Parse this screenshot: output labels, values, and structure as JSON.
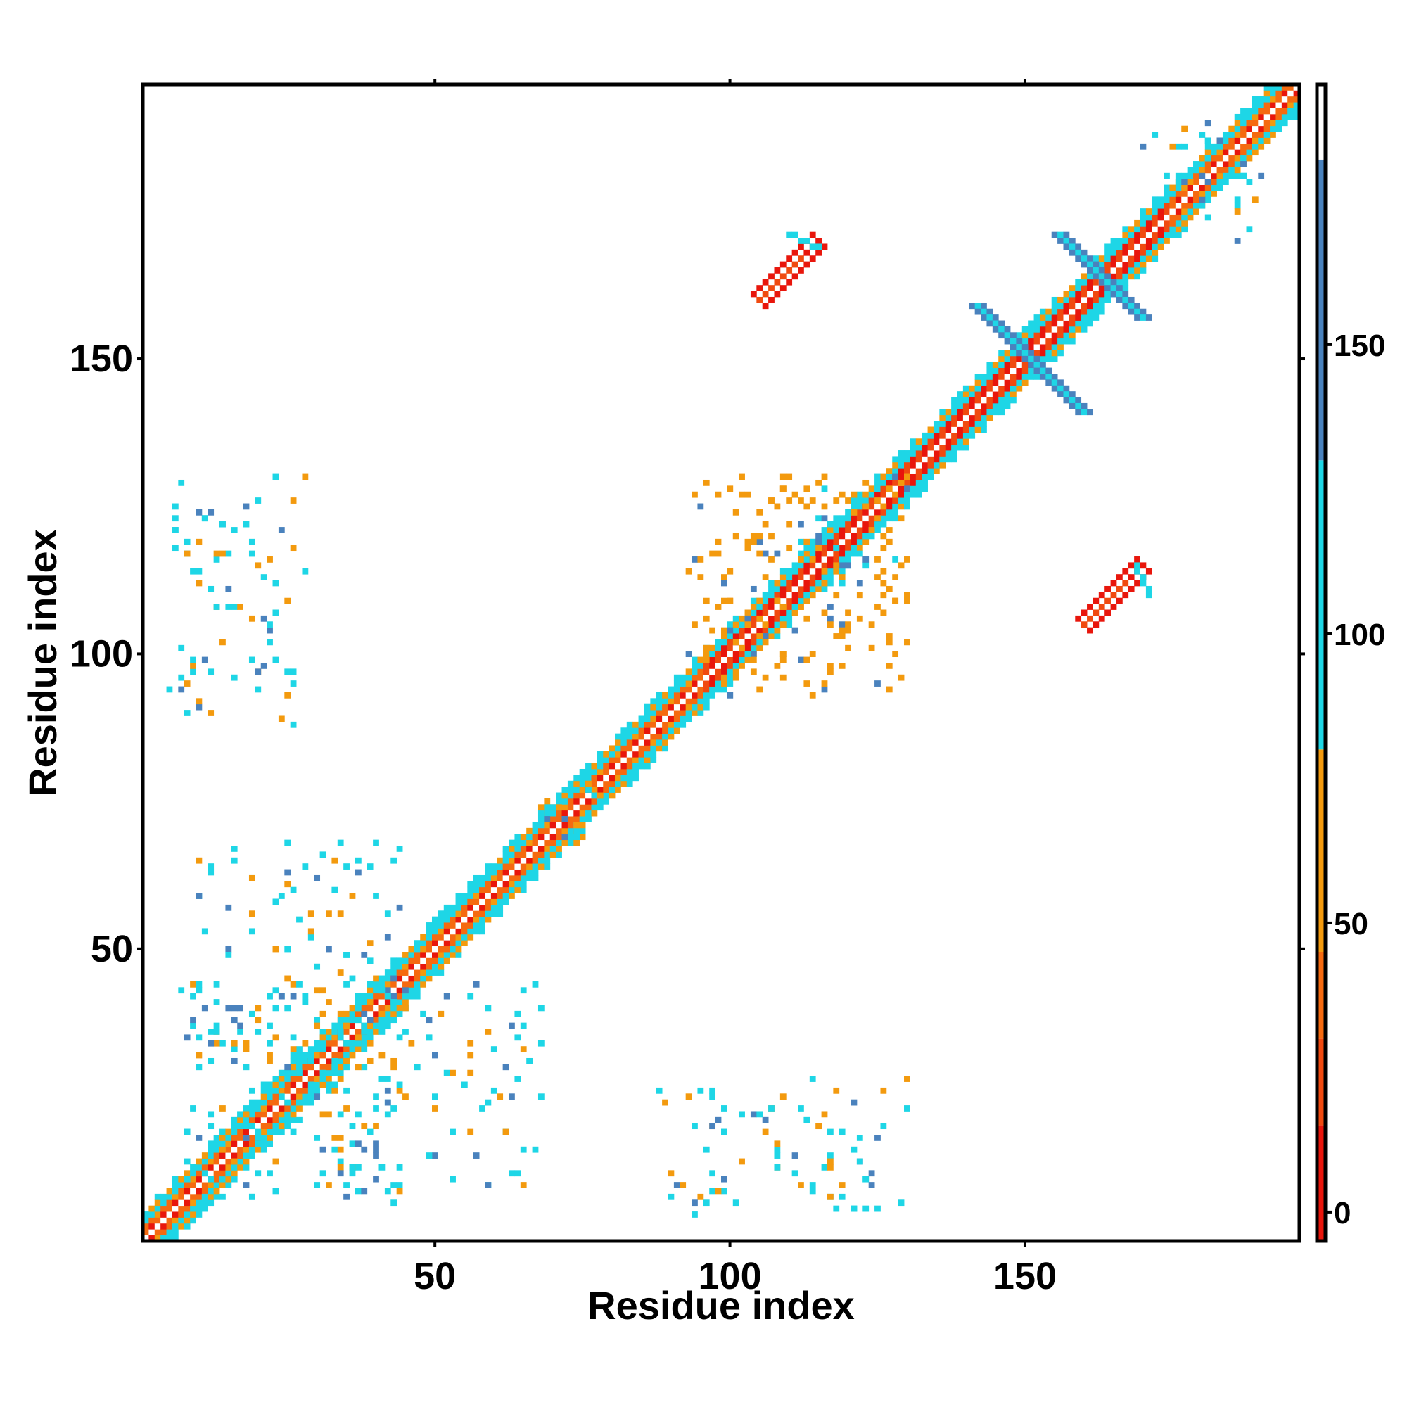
{
  "chart_data": {
    "type": "heatmap",
    "title": "",
    "xlabel": "Residue index",
    "ylabel": "Residue index",
    "xlim": [
      1,
      196
    ],
    "ylim": [
      1,
      196
    ],
    "xticks": [
      50,
      100,
      150
    ],
    "yticks": [
      50,
      100,
      150
    ],
    "grid": false,
    "colorbar": {
      "position": "right",
      "range": [
        -5,
        195
      ],
      "ticks": [
        0,
        50,
        100,
        150
      ],
      "bands": [
        {
          "from": -5,
          "to": 15,
          "color": "#e8160c"
        },
        {
          "from": 15,
          "to": 30,
          "color": "#f04a10"
        },
        {
          "from": 30,
          "to": 45,
          "color": "#f56a10"
        },
        {
          "from": 45,
          "to": 80,
          "color": "#f39a0e"
        },
        {
          "from": 80,
          "to": 130,
          "color": "#1ed6e6"
        },
        {
          "from": 130,
          "to": 182,
          "color": "#4a82bd"
        },
        {
          "from": 182,
          "to": 195,
          "color": "#ffffff"
        }
      ]
    },
    "regions": [
      {
        "name": "main-diagonal",
        "x": [
          1,
          196
        ],
        "y": [
          1,
          196
        ],
        "value": 40
      },
      {
        "name": "upper-strand-pair-a",
        "x": [
          104,
          114
        ],
        "y": [
          161,
          171
        ],
        "value": 20
      },
      {
        "name": "lower-strand-pair-a",
        "x": [
          162,
          172
        ],
        "y": [
          104,
          114
        ],
        "value": 20
      },
      {
        "name": "helix-cross-a",
        "x": [
          142,
          161
        ],
        "y": [
          139,
          160
        ],
        "value": 160
      },
      {
        "name": "helix-cross-b",
        "x": [
          155,
          172
        ],
        "y": [
          156,
          173
        ],
        "value": 160
      },
      {
        "name": "cross-contacts-low",
        "x": [
          8,
          44
        ],
        "y": [
          7,
          45
        ],
        "value": 100
      },
      {
        "name": "cross-contacts-low-b",
        "x": [
          35,
          68
        ],
        "y": [
          9,
          45
        ],
        "value": 100
      },
      {
        "name": "cluster-mid",
        "x": [
          65,
          78
        ],
        "y": [
          70,
          78
        ],
        "value": 100
      },
      {
        "name": "cluster-b",
        "x": [
          110,
          128
        ],
        "y": [
          112,
          124
        ],
        "value": 100
      },
      {
        "name": "cluster-c",
        "x": [
          170,
          185
        ],
        "y": [
          176,
          190
        ],
        "value": 100
      },
      {
        "name": "off-diagonal-spots-a",
        "x": [
          5,
          17
        ],
        "y": [
          116,
          125
        ],
        "value": 110
      },
      {
        "name": "off-diagonal-spots-b",
        "x": [
          88,
          130
        ],
        "y": [
          5,
          30
        ],
        "value": 110
      },
      {
        "name": "off-diagonal-spots-c",
        "x": [
          95,
          130
        ],
        "y": [
          92,
          130
        ],
        "value": 60
      }
    ]
  }
}
